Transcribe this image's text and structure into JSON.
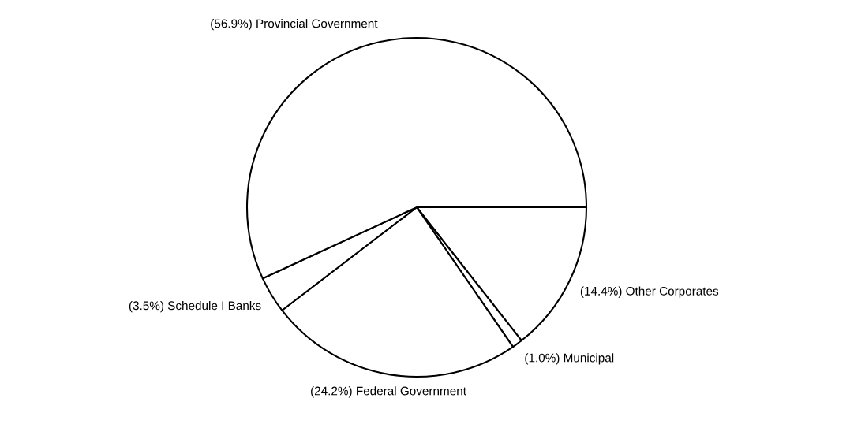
{
  "chart_data": {
    "type": "pie",
    "categories": [
      "Other Corporates",
      "Municipal",
      "Federal Government",
      "Schedule I Banks",
      "Provincial Government"
    ],
    "values": [
      14.4,
      1.0,
      24.2,
      3.5,
      56.9
    ],
    "value_labels": [
      "(14.4%)",
      "(1.0%)",
      "(24.2%)",
      "(3.5%)",
      "(56.9%)"
    ],
    "colors": [
      "#ffffff",
      "#ffffff",
      "#ffffff",
      "#ffffff",
      "#ffffff"
    ],
    "legend": false
  }
}
